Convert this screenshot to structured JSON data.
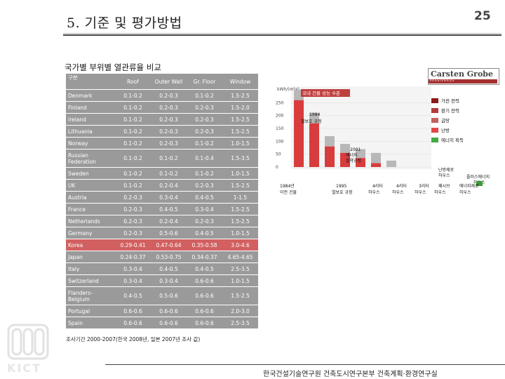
{
  "slide": {
    "title": "5. 기준 및 평가방법",
    "page_number": "25",
    "subtitle": "국가별 부위별 열관류율 비교",
    "survey_note": "조사기간 2000-2007(한국 2008년, 일본 2007년 조사 값)",
    "footer": "한국건설기술연구원 건축도시연구본부 건축계획·환경연구실",
    "logo_text": "KICT"
  },
  "table": {
    "headers": [
      "구분",
      "Roof",
      "Outer Wall",
      "Gr. Floor",
      "Window"
    ],
    "rows": [
      [
        "Denmark",
        "0.1-0.2",
        "0.2-0.3",
        "0.1-0.2",
        "1.5-2.5"
      ],
      [
        "Finland",
        "0.1-0.2",
        "0.2-0.3",
        "0.2-0.3",
        "1.5-2.0"
      ],
      [
        "Ireland",
        "0.1-0.2",
        "0.2-0.3",
        "0.2-0.3",
        "1.5-2.5"
      ],
      [
        "Lithuania",
        "0.1-0.2",
        "0.2-0.3",
        "0.2-0.3",
        "1.5-2.5"
      ],
      [
        "Norway",
        "0.1-0.2",
        "0.2-0.3",
        "0.1-0.2",
        "1.0-1.5"
      ],
      [
        "Russian Federation",
        "0.1-0.2",
        "0.1-0.2",
        "0.1-0.4",
        "1.5-3.5"
      ],
      [
        "Sweden",
        "0.1-0.2",
        "0.1-0.2",
        "0.1-0.2",
        "1.0-1.5"
      ],
      [
        "UK",
        "0.1-0.2",
        "0.2-0.4",
        "0.2-0.3",
        "1.5-2.5"
      ],
      [
        "Austria",
        "0.2-0.3",
        "0.3-0.4",
        "0.4-0.5",
        "1-1.5"
      ],
      [
        "France",
        "0.2-0.3",
        "0.4-0.5",
        "0.3-0.4",
        "1.5-2.5"
      ],
      [
        "Netherlands",
        "0.2-0.3",
        "0.2-0.4",
        "0.2-0.3",
        "1.5-2.5"
      ],
      [
        "Germany",
        "0.2-0.3",
        "0.5-0.6",
        "0.4-0.5",
        "1.0-1.5"
      ],
      [
        "Korea",
        "0.29-0.41",
        "0.47-0.64",
        "0.35-0.58",
        "3.0-4.6"
      ],
      [
        "Japan",
        "0.24-0.37",
        "0.53-0.75",
        "0.34-0.37",
        "4.65-4.65"
      ],
      [
        "Italy",
        "0.3-0.4",
        "0.4-0.5",
        "0.4-0.5",
        "2.5-3.5"
      ],
      [
        "Switzerland",
        "0.3-0.4",
        "0.3-0.4",
        "0.6-0.6",
        "1.0-1.5"
      ],
      [
        "Flanders-Belgium",
        "0.4-0.5",
        "0.5-0.6",
        "0.6-0.6",
        "1.5-2.5"
      ],
      [
        "Portugal",
        "0.6-0.6",
        "0.6-0.6",
        "0.6-0.6",
        "2.0-3.0"
      ],
      [
        "Spain",
        "0.6-0.6",
        "0.6-0.6",
        "0.6-0.6",
        "2.5-3.5"
      ]
    ]
  },
  "figure": {
    "brand": "Carsten Grobe",
    "brand_sub": "PASSIVHAUS",
    "yunit": "kWh/(m²a)",
    "header_label": "국내 건물 성능 수준",
    "annotations": [
      "1984 열보호 규정",
      "2001 에너지 절약규정",
      "난방제로 하우스",
      "플러스에너지 하우스"
    ],
    "x_labels": [
      "1984년 이전 건물",
      "1995 열보호 규정",
      "4리터 하우스",
      "4리터 하우스",
      "3리터 하우스",
      "패시브 하우스",
      "에너지제로 하우스"
    ],
    "legend": [
      "가전 전력",
      "환기 전력",
      "급탕",
      "난방",
      "에너지 획득"
    ],
    "legend_colors": [
      "#8c1a1a",
      "#b23b3b",
      "#c46060",
      "#e04848",
      "#44aa44"
    ],
    "totals": [
      300,
      210,
      120,
      90,
      70,
      55,
      25
    ],
    "heating": [
      260,
      170,
      80,
      55,
      35,
      15,
      0
    ],
    "yticks": [
      0,
      50,
      100,
      150,
      200,
      250
    ]
  }
}
